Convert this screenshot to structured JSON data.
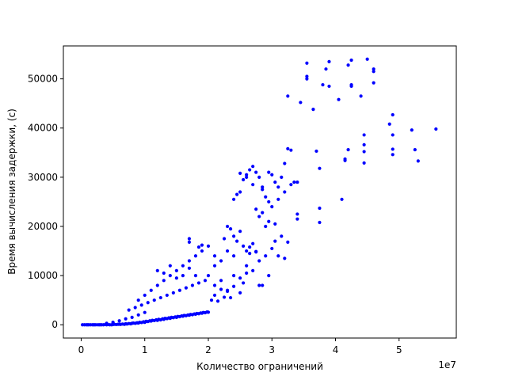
{
  "chart_data": {
    "type": "scatter",
    "title": "",
    "xlabel": "Количество ограничений",
    "ylabel": "Время вычисления задержки, (с)",
    "x_offset_label": "1e7",
    "xlim": [
      -0.28,
      5.9
    ],
    "ylim": [
      -2700,
      56700
    ],
    "x_scale_multiplier": 10000000,
    "xticks": [
      0,
      1,
      2,
      3,
      4,
      5
    ],
    "xtick_labels": [
      "0",
      "1",
      "2",
      "3",
      "4",
      "5"
    ],
    "yticks": [
      0,
      10000,
      20000,
      30000,
      40000,
      50000
    ],
    "ytick_labels": [
      "0",
      "10000",
      "20000",
      "30000",
      "40000",
      "50000"
    ],
    "grid": false,
    "marker_color": "#0000ff",
    "series": [
      {
        "points": [
          [
            0.02,
            0
          ],
          [
            0.05,
            0
          ],
          [
            0.08,
            0
          ],
          [
            0.1,
            0
          ],
          [
            0.12,
            0
          ],
          [
            0.15,
            0
          ],
          [
            0.18,
            0
          ],
          [
            0.2,
            0
          ],
          [
            0.22,
            0
          ],
          [
            0.25,
            0
          ],
          [
            0.28,
            0
          ],
          [
            0.3,
            0
          ],
          [
            0.32,
            0
          ],
          [
            0.35,
            0
          ],
          [
            0.38,
            50
          ],
          [
            0.4,
            0
          ],
          [
            0.42,
            50
          ],
          [
            0.45,
            0
          ],
          [
            0.48,
            0
          ],
          [
            0.5,
            50
          ],
          [
            0.52,
            100
          ],
          [
            0.55,
            50
          ],
          [
            0.58,
            100
          ],
          [
            0.6,
            120
          ],
          [
            0.62,
            80
          ],
          [
            0.65,
            150
          ],
          [
            0.68,
            100
          ],
          [
            0.7,
            200
          ],
          [
            0.72,
            150
          ],
          [
            0.75,
            250
          ],
          [
            0.78,
            200
          ],
          [
            0.8,
            300
          ],
          [
            0.82,
            350
          ],
          [
            0.85,
            300
          ],
          [
            0.88,
            400
          ],
          [
            0.9,
            350
          ],
          [
            0.92,
            500
          ],
          [
            0.95,
            450
          ],
          [
            0.98,
            600
          ],
          [
            1.0,
            500
          ],
          [
            1.02,
            700
          ],
          [
            1.05,
            650
          ],
          [
            1.08,
            800
          ],
          [
            1.1,
            750
          ],
          [
            1.12,
            900
          ],
          [
            1.15,
            850
          ],
          [
            1.18,
            1000
          ],
          [
            1.2,
            900
          ],
          [
            1.22,
            1100
          ],
          [
            1.25,
            1000
          ],
          [
            1.28,
            1200
          ],
          [
            1.3,
            1100
          ],
          [
            1.32,
            1300
          ],
          [
            1.35,
            1250
          ],
          [
            1.38,
            1400
          ],
          [
            1.4,
            1300
          ],
          [
            1.42,
            1500
          ],
          [
            1.45,
            1450
          ],
          [
            1.48,
            1600
          ],
          [
            1.5,
            1500
          ],
          [
            1.52,
            1700
          ],
          [
            1.55,
            1650
          ],
          [
            1.58,
            1800
          ],
          [
            1.6,
            1750
          ],
          [
            1.62,
            1900
          ],
          [
            1.65,
            1850
          ],
          [
            1.68,
            2000
          ],
          [
            1.7,
            1950
          ],
          [
            1.72,
            2100
          ],
          [
            1.75,
            2050
          ],
          [
            1.78,
            2200
          ],
          [
            1.8,
            2150
          ],
          [
            1.82,
            2300
          ],
          [
            1.85,
            2250
          ],
          [
            1.88,
            2400
          ],
          [
            1.9,
            2350
          ],
          [
            1.92,
            2500
          ],
          [
            1.95,
            2450
          ],
          [
            1.98,
            2600
          ],
          [
            2.0,
            2550
          ],
          [
            0.4,
            300
          ],
          [
            0.5,
            500
          ],
          [
            0.6,
            800
          ],
          [
            0.7,
            1200
          ],
          [
            0.8,
            1500
          ],
          [
            0.9,
            2000
          ],
          [
            1.0,
            2500
          ],
          [
            0.75,
            3000
          ],
          [
            0.85,
            3500
          ],
          [
            0.95,
            4000
          ],
          [
            1.05,
            4500
          ],
          [
            1.15,
            5000
          ],
          [
            1.25,
            5500
          ],
          [
            1.35,
            6000
          ],
          [
            1.45,
            6500
          ],
          [
            1.55,
            7000
          ],
          [
            1.65,
            7500
          ],
          [
            1.75,
            8000
          ],
          [
            1.85,
            8500
          ],
          [
            1.95,
            9000
          ],
          [
            0.9,
            5000
          ],
          [
            1.0,
            6000
          ],
          [
            1.1,
            7000
          ],
          [
            1.2,
            8000
          ],
          [
            1.3,
            9000
          ],
          [
            1.4,
            10000
          ],
          [
            1.5,
            11000
          ],
          [
            1.6,
            12000
          ],
          [
            1.7,
            13000
          ],
          [
            1.8,
            14000
          ],
          [
            1.2,
            11000
          ],
          [
            1.3,
            10500
          ],
          [
            1.4,
            12000
          ],
          [
            1.5,
            9500
          ],
          [
            1.6,
            10000
          ],
          [
            1.7,
            11500
          ],
          [
            1.8,
            10000
          ],
          [
            1.9,
            15000
          ],
          [
            2.0,
            16000
          ],
          [
            2.1,
            14000
          ],
          [
            1.7,
            17500
          ],
          [
            1.7,
            16800
          ],
          [
            1.85,
            15800
          ],
          [
            1.9,
            16200
          ],
          [
            2.0,
            10000
          ],
          [
            2.1,
            12000
          ],
          [
            2.2,
            13000
          ],
          [
            2.3,
            15000
          ],
          [
            2.4,
            14000
          ],
          [
            2.25,
            17500
          ],
          [
            2.3,
            20000
          ],
          [
            2.35,
            19500
          ],
          [
            2.4,
            18000
          ],
          [
            2.45,
            17000
          ],
          [
            2.5,
            19000
          ],
          [
            2.55,
            16000
          ],
          [
            2.6,
            15000
          ],
          [
            2.65,
            14500
          ],
          [
            2.7,
            16500
          ],
          [
            2.75,
            14800
          ],
          [
            2.1,
            8000
          ],
          [
            2.2,
            9000
          ],
          [
            2.3,
            7000
          ],
          [
            2.4,
            10000
          ],
          [
            2.5,
            6500
          ],
          [
            2.6,
            12000
          ],
          [
            2.7,
            11000
          ],
          [
            2.8,
            13000
          ],
          [
            2.85,
            8000
          ],
          [
            2.9,
            14000
          ],
          [
            2.05,
            5000
          ],
          [
            2.1,
            6000
          ],
          [
            2.15,
            4800
          ],
          [
            2.2,
            7200
          ],
          [
            2.25,
            5600
          ],
          [
            2.3,
            6800
          ],
          [
            2.35,
            5500
          ],
          [
            2.4,
            7800
          ],
          [
            2.5,
            9500
          ],
          [
            2.6,
            10500
          ],
          [
            2.4,
            25500
          ],
          [
            2.45,
            26500
          ],
          [
            2.5,
            27000
          ],
          [
            2.55,
            29500
          ],
          [
            2.6,
            30500
          ],
          [
            2.65,
            31500
          ],
          [
            2.7,
            32200
          ],
          [
            2.75,
            31000
          ],
          [
            2.8,
            30000
          ],
          [
            2.85,
            27500
          ],
          [
            2.9,
            26000
          ],
          [
            2.95,
            31000
          ],
          [
            3.0,
            30500
          ],
          [
            3.05,
            29000
          ],
          [
            3.1,
            28000
          ],
          [
            3.15,
            30000
          ],
          [
            3.2,
            32800
          ],
          [
            3.25,
            35800
          ],
          [
            3.3,
            35500
          ],
          [
            3.35,
            29000
          ],
          [
            2.5,
            30800
          ],
          [
            2.6,
            30000
          ],
          [
            2.7,
            28500
          ],
          [
            2.8,
            22000
          ],
          [
            2.9,
            20000
          ],
          [
            3.0,
            24000
          ],
          [
            3.1,
            25500
          ],
          [
            3.2,
            27000
          ],
          [
            3.3,
            28500
          ],
          [
            3.4,
            29000
          ],
          [
            2.75,
            23500
          ],
          [
            2.85,
            22800
          ],
          [
            2.95,
            21000
          ],
          [
            3.0,
            15500
          ],
          [
            3.05,
            17000
          ],
          [
            3.1,
            14000
          ],
          [
            3.2,
            13500
          ],
          [
            3.25,
            16800
          ],
          [
            3.4,
            22500
          ],
          [
            3.4,
            21500
          ],
          [
            3.25,
            46500
          ],
          [
            3.55,
            53200
          ],
          [
            3.55,
            50500
          ],
          [
            3.55,
            50000
          ],
          [
            3.45,
            45200
          ],
          [
            3.65,
            43800
          ],
          [
            3.9,
            53500
          ],
          [
            3.85,
            52000
          ],
          [
            3.9,
            48500
          ],
          [
            3.8,
            48800
          ],
          [
            4.05,
            45800
          ],
          [
            4.2,
            52800
          ],
          [
            4.25,
            53800
          ],
          [
            4.25,
            48800
          ],
          [
            4.25,
            48500
          ],
          [
            4.5,
            54000
          ],
          [
            4.6,
            52000
          ],
          [
            4.6,
            51500
          ],
          [
            4.4,
            46500
          ],
          [
            4.6,
            49200
          ],
          [
            3.7,
            35300
          ],
          [
            3.75,
            31800
          ],
          [
            3.75,
            23700
          ],
          [
            3.75,
            20800
          ],
          [
            4.1,
            25500
          ],
          [
            4.15,
            33400
          ],
          [
            4.15,
            33700
          ],
          [
            4.2,
            35600
          ],
          [
            4.45,
            38600
          ],
          [
            4.45,
            36600
          ],
          [
            4.45,
            35200
          ],
          [
            4.45,
            32900
          ],
          [
            4.85,
            40800
          ],
          [
            4.9,
            42700
          ],
          [
            4.9,
            38600
          ],
          [
            4.9,
            35700
          ],
          [
            4.9,
            34600
          ],
          [
            5.2,
            39600
          ],
          [
            5.25,
            35600
          ],
          [
            5.3,
            33300
          ],
          [
            5.58,
            39800
          ],
          [
            2.85,
            28000
          ],
          [
            2.95,
            25000
          ],
          [
            3.05,
            20500
          ],
          [
            3.15,
            18000
          ],
          [
            2.55,
            8500
          ],
          [
            2.8,
            8000
          ],
          [
            2.95,
            10000
          ],
          [
            2.65,
            15800
          ],
          [
            2.75,
            14900
          ]
        ]
      }
    ]
  }
}
